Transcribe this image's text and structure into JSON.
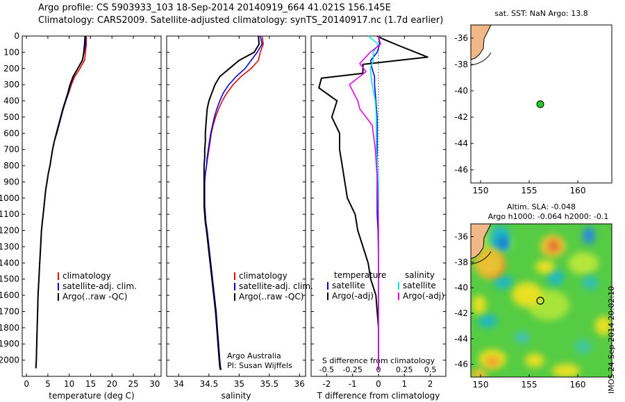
{
  "header": {
    "line1": "Argo profile: CS 5903933_103 18-Sep-2014 20140919_664 41.021S 156.145E",
    "line2": "Climatology: CARS2009. Satellite-adjusted climatology: synTS_20140917.nc (1.7d earlier)"
  },
  "credit": "IMOS 24-Sep-2014 20:02:10",
  "colors": {
    "climatology": "#e60000",
    "satellite": "#0000e6",
    "argo": "#000000",
    "sal_sat": "#00e6e6",
    "sal_argo": "#e600e6",
    "land": "#f0b888",
    "marker": "#22cc22"
  },
  "chart_data": [
    {
      "id": "temperature",
      "type": "line",
      "xlabel": "temperature (deg C)",
      "ylabel": "",
      "xlim": [
        -1,
        31.5
      ],
      "ylim": [
        2100,
        0
      ],
      "xticks": [
        "0",
        "5",
        "10",
        "15",
        "20",
        "25",
        "30"
      ],
      "yticks": [
        "0",
        "100",
        "200",
        "300",
        "400",
        "500",
        "600",
        "700",
        "800",
        "900",
        "1000",
        "1100",
        "1200",
        "1300",
        "1400",
        "1500",
        "1600",
        "1700",
        "1800",
        "1900",
        "2000"
      ],
      "legend": [
        "climatology",
        "satellite-adj. clim.",
        "Argo(..raw -QC)"
      ],
      "legend_position": "lower-right",
      "series": [
        {
          "name": "climatology",
          "x": [
            14,
            14,
            13.8,
            13.6,
            12.5,
            11.3,
            10.5,
            9.9,
            9.2,
            8.6,
            8.1,
            7.6,
            7.1,
            6.5,
            6.1,
            5.8,
            5.5,
            5.1,
            4.8,
            4.5,
            4.3,
            4.1,
            3.9,
            3.7,
            3.5,
            3.3,
            3.1,
            2.9,
            2.7,
            2.6,
            2.5,
            2.4,
            2.3,
            2.2
          ],
          "y": [
            0,
            50,
            100,
            150,
            200,
            250,
            300,
            350,
            400,
            450,
            500,
            550,
            600,
            650,
            700,
            750,
            800,
            850,
            900,
            950,
            1000,
            1050,
            1100,
            1150,
            1200,
            1300,
            1400,
            1500,
            1600,
            1700,
            1800,
            1900,
            2000,
            2050
          ]
        },
        {
          "name": "satellite-adj. clim.",
          "x": [
            13.8,
            13.8,
            13.5,
            13,
            12,
            11,
            10.3,
            9.8,
            9.2,
            8.6,
            8.1,
            7.6,
            7.1,
            6.5,
            6.1,
            5.8,
            5.5,
            5.1,
            4.8,
            4.5,
            4.3,
            4.1,
            3.9,
            3.7,
            3.5,
            3.3,
            3.1,
            2.9,
            2.7,
            2.6,
            2.5,
            2.4,
            2.3,
            2.2
          ],
          "y": [
            0,
            50,
            100,
            150,
            200,
            250,
            300,
            350,
            400,
            450,
            500,
            550,
            600,
            650,
            700,
            750,
            800,
            850,
            900,
            950,
            1000,
            1050,
            1100,
            1150,
            1200,
            1300,
            1400,
            1500,
            1600,
            1700,
            1800,
            1900,
            2000,
            2050
          ]
        },
        {
          "name": "Argo(..raw -QC)",
          "x": [
            13.7,
            13.6,
            13.4,
            13.1,
            12,
            10.9,
            10.2,
            9.7,
            9.1,
            8.5,
            8,
            7.5,
            7,
            6.5,
            6.1,
            5.8,
            5.5,
            5.1,
            4.8,
            4.5,
            4.3,
            4.1,
            3.9,
            3.7,
            3.5,
            3.3,
            3.1,
            2.9,
            2.7,
            2.6,
            2.5,
            2.4,
            2.3,
            2.2
          ],
          "y": [
            0,
            50,
            100,
            150,
            200,
            250,
            300,
            350,
            400,
            450,
            500,
            550,
            600,
            650,
            700,
            750,
            800,
            850,
            900,
            950,
            1000,
            1050,
            1100,
            1150,
            1200,
            1300,
            1400,
            1500,
            1600,
            1700,
            1800,
            1900,
            2000,
            2050
          ]
        }
      ]
    },
    {
      "id": "salinity",
      "type": "line",
      "xlabel": "salinity",
      "xlim": [
        33.8,
        36.1
      ],
      "ylim": [
        2100,
        0
      ],
      "xticks": [
        "34",
        "34.5",
        "35",
        "35.5",
        "36"
      ],
      "legend": [
        "climatology",
        "satellite-adj. clim.",
        "Argo(..raw -QC)"
      ],
      "legend_position": "lower-right",
      "annotations": [
        "Argo Australia",
        "PI: Susan Wijffels"
      ],
      "series": [
        {
          "name": "climatology",
          "x": [
            35.38,
            35.4,
            35.35,
            35.32,
            35.2,
            35.03,
            34.9,
            34.8,
            34.72,
            34.66,
            34.61,
            34.57,
            34.54,
            34.52,
            34.5,
            34.48,
            34.46,
            34.44,
            34.43,
            34.43,
            34.43,
            34.43,
            34.44,
            34.45,
            34.47,
            34.5,
            34.53,
            34.56,
            34.59,
            34.62,
            34.64,
            34.66,
            34.68,
            34.69,
            34.7
          ],
          "y": [
            0,
            50,
            100,
            150,
            200,
            250,
            300,
            350,
            400,
            450,
            500,
            550,
            600,
            650,
            700,
            750,
            800,
            850,
            900,
            950,
            1000,
            1050,
            1100,
            1150,
            1200,
            1300,
            1400,
            1500,
            1600,
            1700,
            1800,
            1900,
            2000,
            2040,
            2060
          ]
        },
        {
          "name": "satellite-adj. clim.",
          "x": [
            35.35,
            35.38,
            35.3,
            35.2,
            35.1,
            34.95,
            34.83,
            34.74,
            34.68,
            34.63,
            34.59,
            34.56,
            34.53,
            34.51,
            34.49,
            34.47,
            34.46,
            34.44,
            34.43,
            34.43,
            34.43,
            34.43,
            34.44,
            34.45,
            34.47,
            34.5,
            34.53,
            34.56,
            34.59,
            34.62,
            34.64,
            34.66,
            34.68,
            34.69,
            34.7
          ],
          "y": [
            0,
            50,
            100,
            150,
            200,
            250,
            300,
            350,
            400,
            450,
            500,
            550,
            600,
            650,
            700,
            750,
            800,
            850,
            900,
            950,
            1000,
            1050,
            1100,
            1150,
            1200,
            1300,
            1400,
            1500,
            1600,
            1700,
            1800,
            1900,
            2000,
            2040,
            2060
          ]
        },
        {
          "name": "Argo(..raw -QC)",
          "x": [
            35.32,
            35.33,
            35.25,
            35,
            34.84,
            34.68,
            34.6,
            34.55,
            34.5,
            34.47,
            34.46,
            34.45,
            34.44,
            34.44,
            34.43,
            34.43,
            34.42,
            34.42,
            34.42,
            34.42,
            34.42,
            34.42,
            34.43,
            34.44,
            34.46,
            34.49,
            34.52,
            34.55,
            34.58,
            34.61,
            34.63,
            34.65,
            34.67,
            34.68,
            34.69
          ],
          "y": [
            0,
            50,
            100,
            150,
            200,
            250,
            300,
            350,
            400,
            450,
            500,
            550,
            600,
            650,
            700,
            750,
            800,
            850,
            900,
            950,
            1000,
            1050,
            1100,
            1150,
            1200,
            1300,
            1400,
            1500,
            1600,
            1700,
            1800,
            1900,
            2000,
            2040,
            2060
          ]
        }
      ]
    },
    {
      "id": "difference",
      "type": "line",
      "xlabel": "T difference from climatology",
      "xlabel_top": "S difference from climatology",
      "xlim": [
        -2.6,
        2.6
      ],
      "ylim": [
        2100,
        0
      ],
      "xticks": [
        "-2",
        "-1",
        "0",
        "1",
        "2"
      ],
      "xticks_salinity": [
        "-0.5",
        "-0.25",
        "0",
        "0.25",
        "0.5"
      ],
      "legend_temperature": {
        "title": "temperature",
        "items": [
          "satellite",
          "Argo(-adj)"
        ]
      },
      "legend_salinity": {
        "title": "salinity",
        "items": [
          "satellite",
          "Argo(-adj)"
        ]
      },
      "series": [
        {
          "name": "satellite",
          "group": "temperature",
          "x": [
            0,
            0.05,
            -0.05,
            -0.3,
            -0.25,
            -0.15,
            -0.15,
            -0.1,
            -0.05,
            -0.05,
            -0.05,
            -0.05,
            -0.05,
            -0.05,
            -0.05,
            -0.02,
            0,
            0,
            0,
            0,
            0
          ],
          "y": [
            0,
            50,
            100,
            150,
            200,
            250,
            300,
            400,
            500,
            600,
            700,
            800,
            900,
            1000,
            1100,
            1200,
            1400,
            1600,
            1800,
            2000,
            2060
          ]
        },
        {
          "name": "Argo(-adj)",
          "group": "temperature",
          "x": [
            -0.05,
            0.2,
            0.8,
            1.9,
            -0.6,
            -0.6,
            -2.2,
            -2.3,
            -1.6,
            -1.8,
            -1.5,
            -1.5,
            -1.4,
            -1.3,
            -1.2,
            -0.9,
            -0.8,
            -0.4,
            -0.3,
            -0.1,
            0,
            0,
            0
          ],
          "y": [
            0,
            20,
            60,
            130,
            175,
            230,
            260,
            320,
            400,
            500,
            600,
            700,
            800,
            900,
            1000,
            1100,
            1200,
            1400,
            1500,
            1600,
            1800,
            2000,
            2060
          ]
        },
        {
          "name": "satellite",
          "group": "salinity",
          "x": [
            -0.1,
            0,
            -0.05,
            -0.05,
            -0.08,
            -0.06,
            -0.03,
            -0.02,
            -0.02,
            0,
            0,
            0,
            0,
            0
          ],
          "y": [
            0,
            50,
            100,
            150,
            200,
            300,
            400,
            500,
            700,
            900,
            1200,
            1600,
            2000,
            2060
          ]
        },
        {
          "name": "Argo(-adj)",
          "group": "salinity",
          "x": [
            0,
            0.02,
            -0.08,
            -0.18,
            -0.12,
            -0.28,
            -0.2,
            -0.18,
            -0.06,
            -0.03,
            -0.01,
            0,
            0,
            0,
            0
          ],
          "y": [
            0,
            50,
            100,
            170,
            220,
            300,
            400,
            450,
            550,
            700,
            900,
            1200,
            1600,
            2000,
            2060
          ]
        }
      ]
    },
    {
      "id": "sst_map",
      "type": "scatter",
      "title": "sat. SST: NaN Argo: 13.8",
      "xlim": [
        149,
        163.5
      ],
      "ylim": [
        -47,
        -35
      ],
      "xticks": [
        "150",
        "155",
        "160"
      ],
      "yticks": [
        "-36",
        "-38",
        "-40",
        "-42",
        "-44",
        "-46"
      ],
      "points": [
        {
          "x": 156.145,
          "y": -41.021
        }
      ]
    },
    {
      "id": "sla_map",
      "type": "heatmap",
      "title_line1": "Altim. SLA: -0.048",
      "title_line2": "Argo h1000: -0.064 h2000: -0.1",
      "xlim": [
        149,
        163.5
      ],
      "ylim": [
        -47,
        -35
      ],
      "xticks": [
        "150",
        "155",
        "160"
      ],
      "yticks": [
        "-36",
        "-38",
        "-40",
        "-42",
        "-44",
        "-46"
      ],
      "points": [
        {
          "x": 156.145,
          "y": -41.021
        }
      ]
    }
  ]
}
